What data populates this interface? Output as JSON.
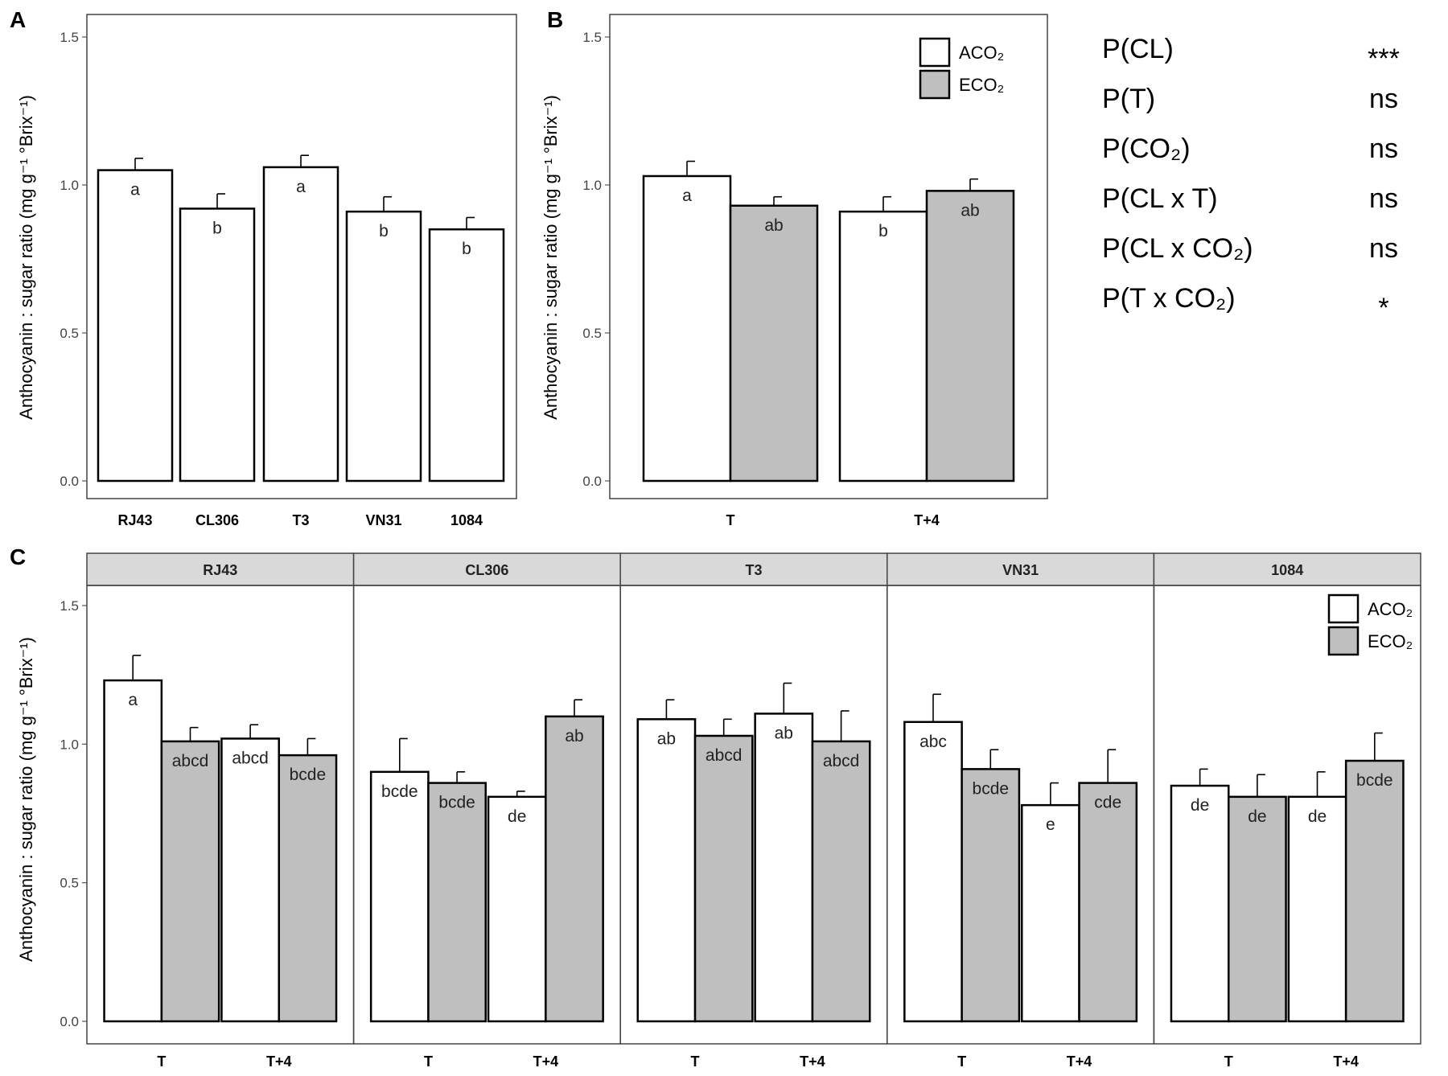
{
  "colors": {
    "aco2": "#ffffff",
    "eco2": "#bfbfbf",
    "outline": "#000000",
    "strip": "#d9d9d9"
  },
  "ylabel": "Anthocyanin : sugar ratio (mg g⁻¹ °Brix⁻¹)",
  "legend": {
    "aco2": "ACO₂",
    "eco2": "ECO₂"
  },
  "stats_table": [
    {
      "term": "P(CL)",
      "value": "***"
    },
    {
      "term": "P(T)",
      "value": "ns"
    },
    {
      "term": "P(CO₂)",
      "value": "ns"
    },
    {
      "term": "P(CL x T)",
      "value": "ns"
    },
    {
      "term": "P(CL x CO₂)",
      "value": "ns"
    },
    {
      "term": "P(T x CO₂)",
      "value": "*"
    }
  ],
  "chart_data": [
    {
      "panel": "A",
      "type": "bar",
      "ylim": [
        0,
        1.5
      ],
      "yticks": [
        "0.0",
        "0.5",
        "1.0",
        "1.5"
      ],
      "categories": [
        "RJ43",
        "CL306",
        "T3",
        "VN31",
        "1084"
      ],
      "values": [
        1.05,
        0.92,
        1.06,
        0.91,
        0.85
      ],
      "errors": [
        0.04,
        0.05,
        0.04,
        0.05,
        0.04
      ],
      "letters": [
        "a",
        "b",
        "a",
        "b",
        "b"
      ]
    },
    {
      "panel": "B",
      "type": "bar",
      "ylim": [
        0,
        1.5
      ],
      "yticks": [
        "0.0",
        "0.5",
        "1.0",
        "1.5"
      ],
      "categories": [
        "T",
        "T+4"
      ],
      "series": [
        {
          "name": "ACO₂",
          "values": [
            1.03,
            0.91
          ],
          "errors": [
            0.05,
            0.05
          ],
          "letters": [
            "a",
            "b"
          ]
        },
        {
          "name": "ECO₂",
          "values": [
            0.93,
            0.98
          ],
          "errors": [
            0.03,
            0.04
          ],
          "letters": [
            "ab",
            "ab"
          ]
        }
      ]
    },
    {
      "panel": "C",
      "type": "bar",
      "ylim": [
        0,
        1.5
      ],
      "yticks": [
        "0.0",
        "0.5",
        "1.0",
        "1.5"
      ],
      "facets": [
        {
          "name": "RJ43",
          "categories": [
            "T",
            "T+4"
          ],
          "series": [
            {
              "name": "ACO₂",
              "values": [
                1.23,
                1.02
              ],
              "errors": [
                0.09,
                0.05
              ],
              "letters": [
                "a",
                "abcd"
              ]
            },
            {
              "name": "ECO₂",
              "values": [
                1.01,
                0.96
              ],
              "errors": [
                0.05,
                0.06
              ],
              "letters": [
                "abcd",
                "bcde"
              ]
            }
          ]
        },
        {
          "name": "CL306",
          "categories": [
            "T",
            "T+4"
          ],
          "series": [
            {
              "name": "ACO₂",
              "values": [
                0.9,
                0.81
              ],
              "errors": [
                0.12,
                0.02
              ],
              "letters": [
                "bcde",
                "de"
              ]
            },
            {
              "name": "ECO₂",
              "values": [
                0.86,
                1.1
              ],
              "errors": [
                0.04,
                0.06
              ],
              "letters": [
                "bcde",
                "ab"
              ]
            }
          ]
        },
        {
          "name": "T3",
          "categories": [
            "T",
            "T+4"
          ],
          "series": [
            {
              "name": "ACO₂",
              "values": [
                1.09,
                1.11
              ],
              "errors": [
                0.07,
                0.11
              ],
              "letters": [
                "ab",
                "ab"
              ]
            },
            {
              "name": "ECO₂",
              "values": [
                1.03,
                1.01
              ],
              "errors": [
                0.06,
                0.11
              ],
              "letters": [
                "abcd",
                "abcd"
              ]
            }
          ]
        },
        {
          "name": "VN31",
          "categories": [
            "T",
            "T+4"
          ],
          "series": [
            {
              "name": "ACO₂",
              "values": [
                1.08,
                0.78
              ],
              "errors": [
                0.1,
                0.08
              ],
              "letters": [
                "abc",
                "e"
              ]
            },
            {
              "name": "ECO₂",
              "values": [
                0.91,
                0.86
              ],
              "errors": [
                0.07,
                0.12
              ],
              "letters": [
                "bcde",
                "cde"
              ]
            }
          ]
        },
        {
          "name": "1084",
          "categories": [
            "T",
            "T+4"
          ],
          "series": [
            {
              "name": "ACO₂",
              "values": [
                0.85,
                0.81
              ],
              "errors": [
                0.06,
                0.09
              ],
              "letters": [
                "de",
                "de"
              ]
            },
            {
              "name": "ECO₂",
              "values": [
                0.81,
                0.94
              ],
              "errors": [
                0.08,
                0.1
              ],
              "letters": [
                "de",
                "bcde"
              ]
            }
          ]
        }
      ]
    }
  ]
}
